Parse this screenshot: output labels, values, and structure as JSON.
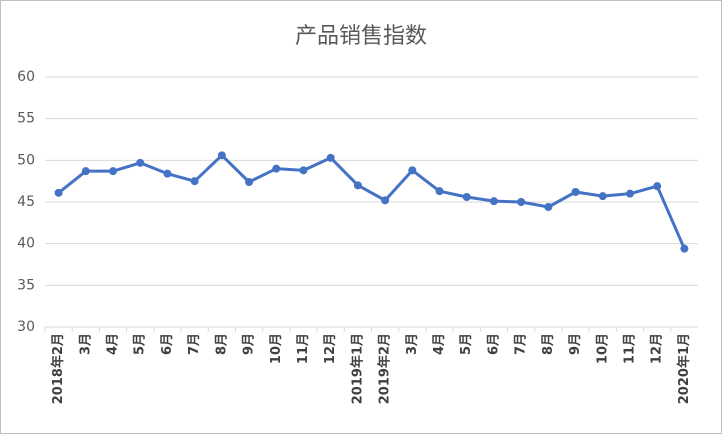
{
  "chart_data": {
    "type": "line",
    "title": "产品销售指数",
    "categories": [
      "2018年2月",
      "3月",
      "4月",
      "5月",
      "6月",
      "7月",
      "8月",
      "9月",
      "10月",
      "11月",
      "12月",
      "2019年1月",
      "2019年2月",
      "3月",
      "4月",
      "5月",
      "6月",
      "7月",
      "8月",
      "9月",
      "10月",
      "11月",
      "12月",
      "2020年1月"
    ],
    "values": [
      46.1,
      48.7,
      48.7,
      49.7,
      48.4,
      47.5,
      50.6,
      47.4,
      49.0,
      48.8,
      50.3,
      47.0,
      45.2,
      48.8,
      46.3,
      45.6,
      45.1,
      45.0,
      44.4,
      46.2,
      45.7,
      46.0,
      46.9,
      39.4
    ],
    "color": "#4472c4",
    "ylim": [
      30,
      60
    ],
    "yticks": [
      30,
      35,
      40,
      45,
      50,
      55,
      60
    ],
    "grid": true
  }
}
